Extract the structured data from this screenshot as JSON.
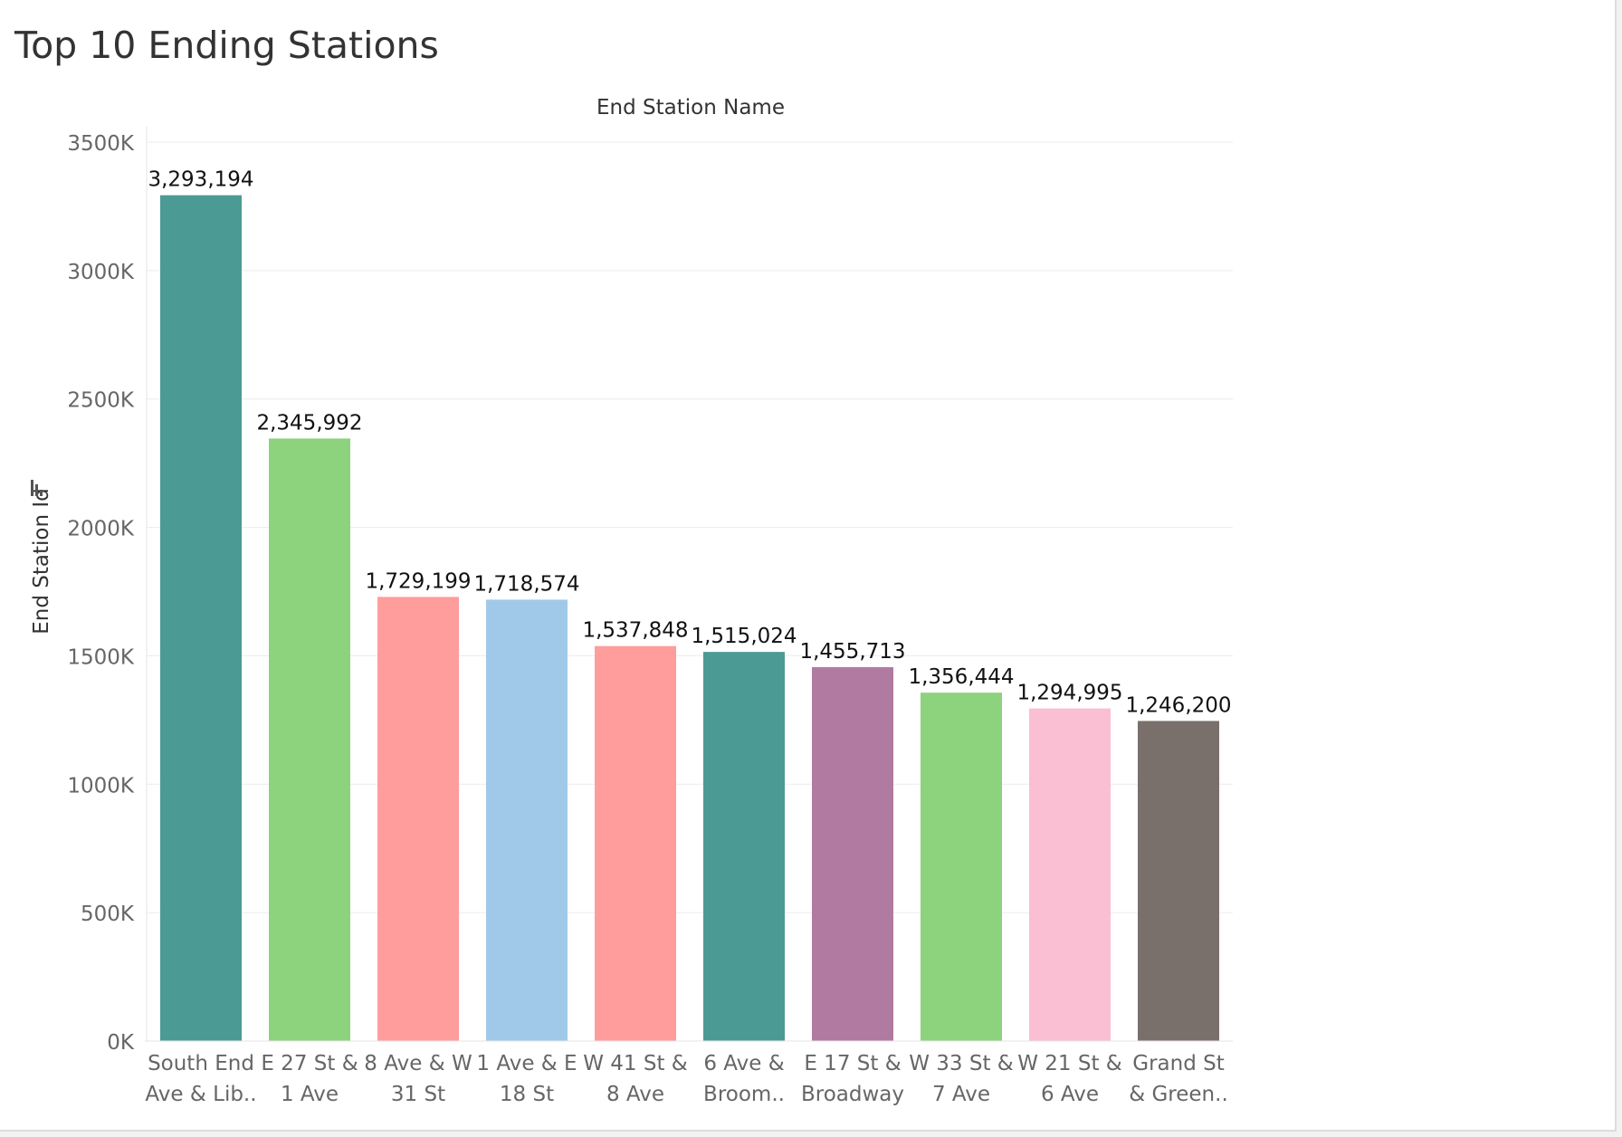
{
  "chart_data": {
    "type": "bar",
    "title": "Top 10 Ending Stations",
    "xlabel": "End Station Name",
    "ylabel": "End Station Id",
    "ylim": [
      0,
      3500000
    ],
    "yticks": [
      0,
      500000,
      1000000,
      1500000,
      2000000,
      2500000,
      3000000,
      3500000
    ],
    "ytick_labels": [
      "0K",
      "500K",
      "1000K",
      "1500K",
      "2000K",
      "2500K",
      "3000K",
      "3500K"
    ],
    "grid": true,
    "categories": [
      [
        "South End",
        "Ave & Lib.."
      ],
      [
        "E 27 St &",
        "1 Ave"
      ],
      [
        "8 Ave & W",
        "31 St"
      ],
      [
        "1 Ave & E",
        "18 St"
      ],
      [
        "W 41 St &",
        "8 Ave"
      ],
      [
        "6 Ave &",
        "Broom.."
      ],
      [
        "E 17 St &",
        "Broadway"
      ],
      [
        "W 33 St &",
        "7 Ave"
      ],
      [
        "W 21 St &",
        "6 Ave"
      ],
      [
        "Grand St",
        "& Green.."
      ]
    ],
    "values": [
      3293194,
      2345992,
      1729199,
      1718574,
      1537848,
      1515024,
      1455713,
      1356444,
      1294995,
      1246200
    ],
    "value_labels": [
      "3,293,194",
      "2,345,992",
      "1,729,199",
      "1,718,574",
      "1,537,848",
      "1,515,024",
      "1,455,713",
      "1,356,444",
      "1,294,995",
      "1,246,200"
    ],
    "colors": [
      "#4b9a93",
      "#8dd27c",
      "#ff9c9c",
      "#a0c9e9",
      "#ff9c9c",
      "#4b9a93",
      "#b07aa1",
      "#8dd27c",
      "#fabfd2",
      "#796f6b"
    ]
  }
}
